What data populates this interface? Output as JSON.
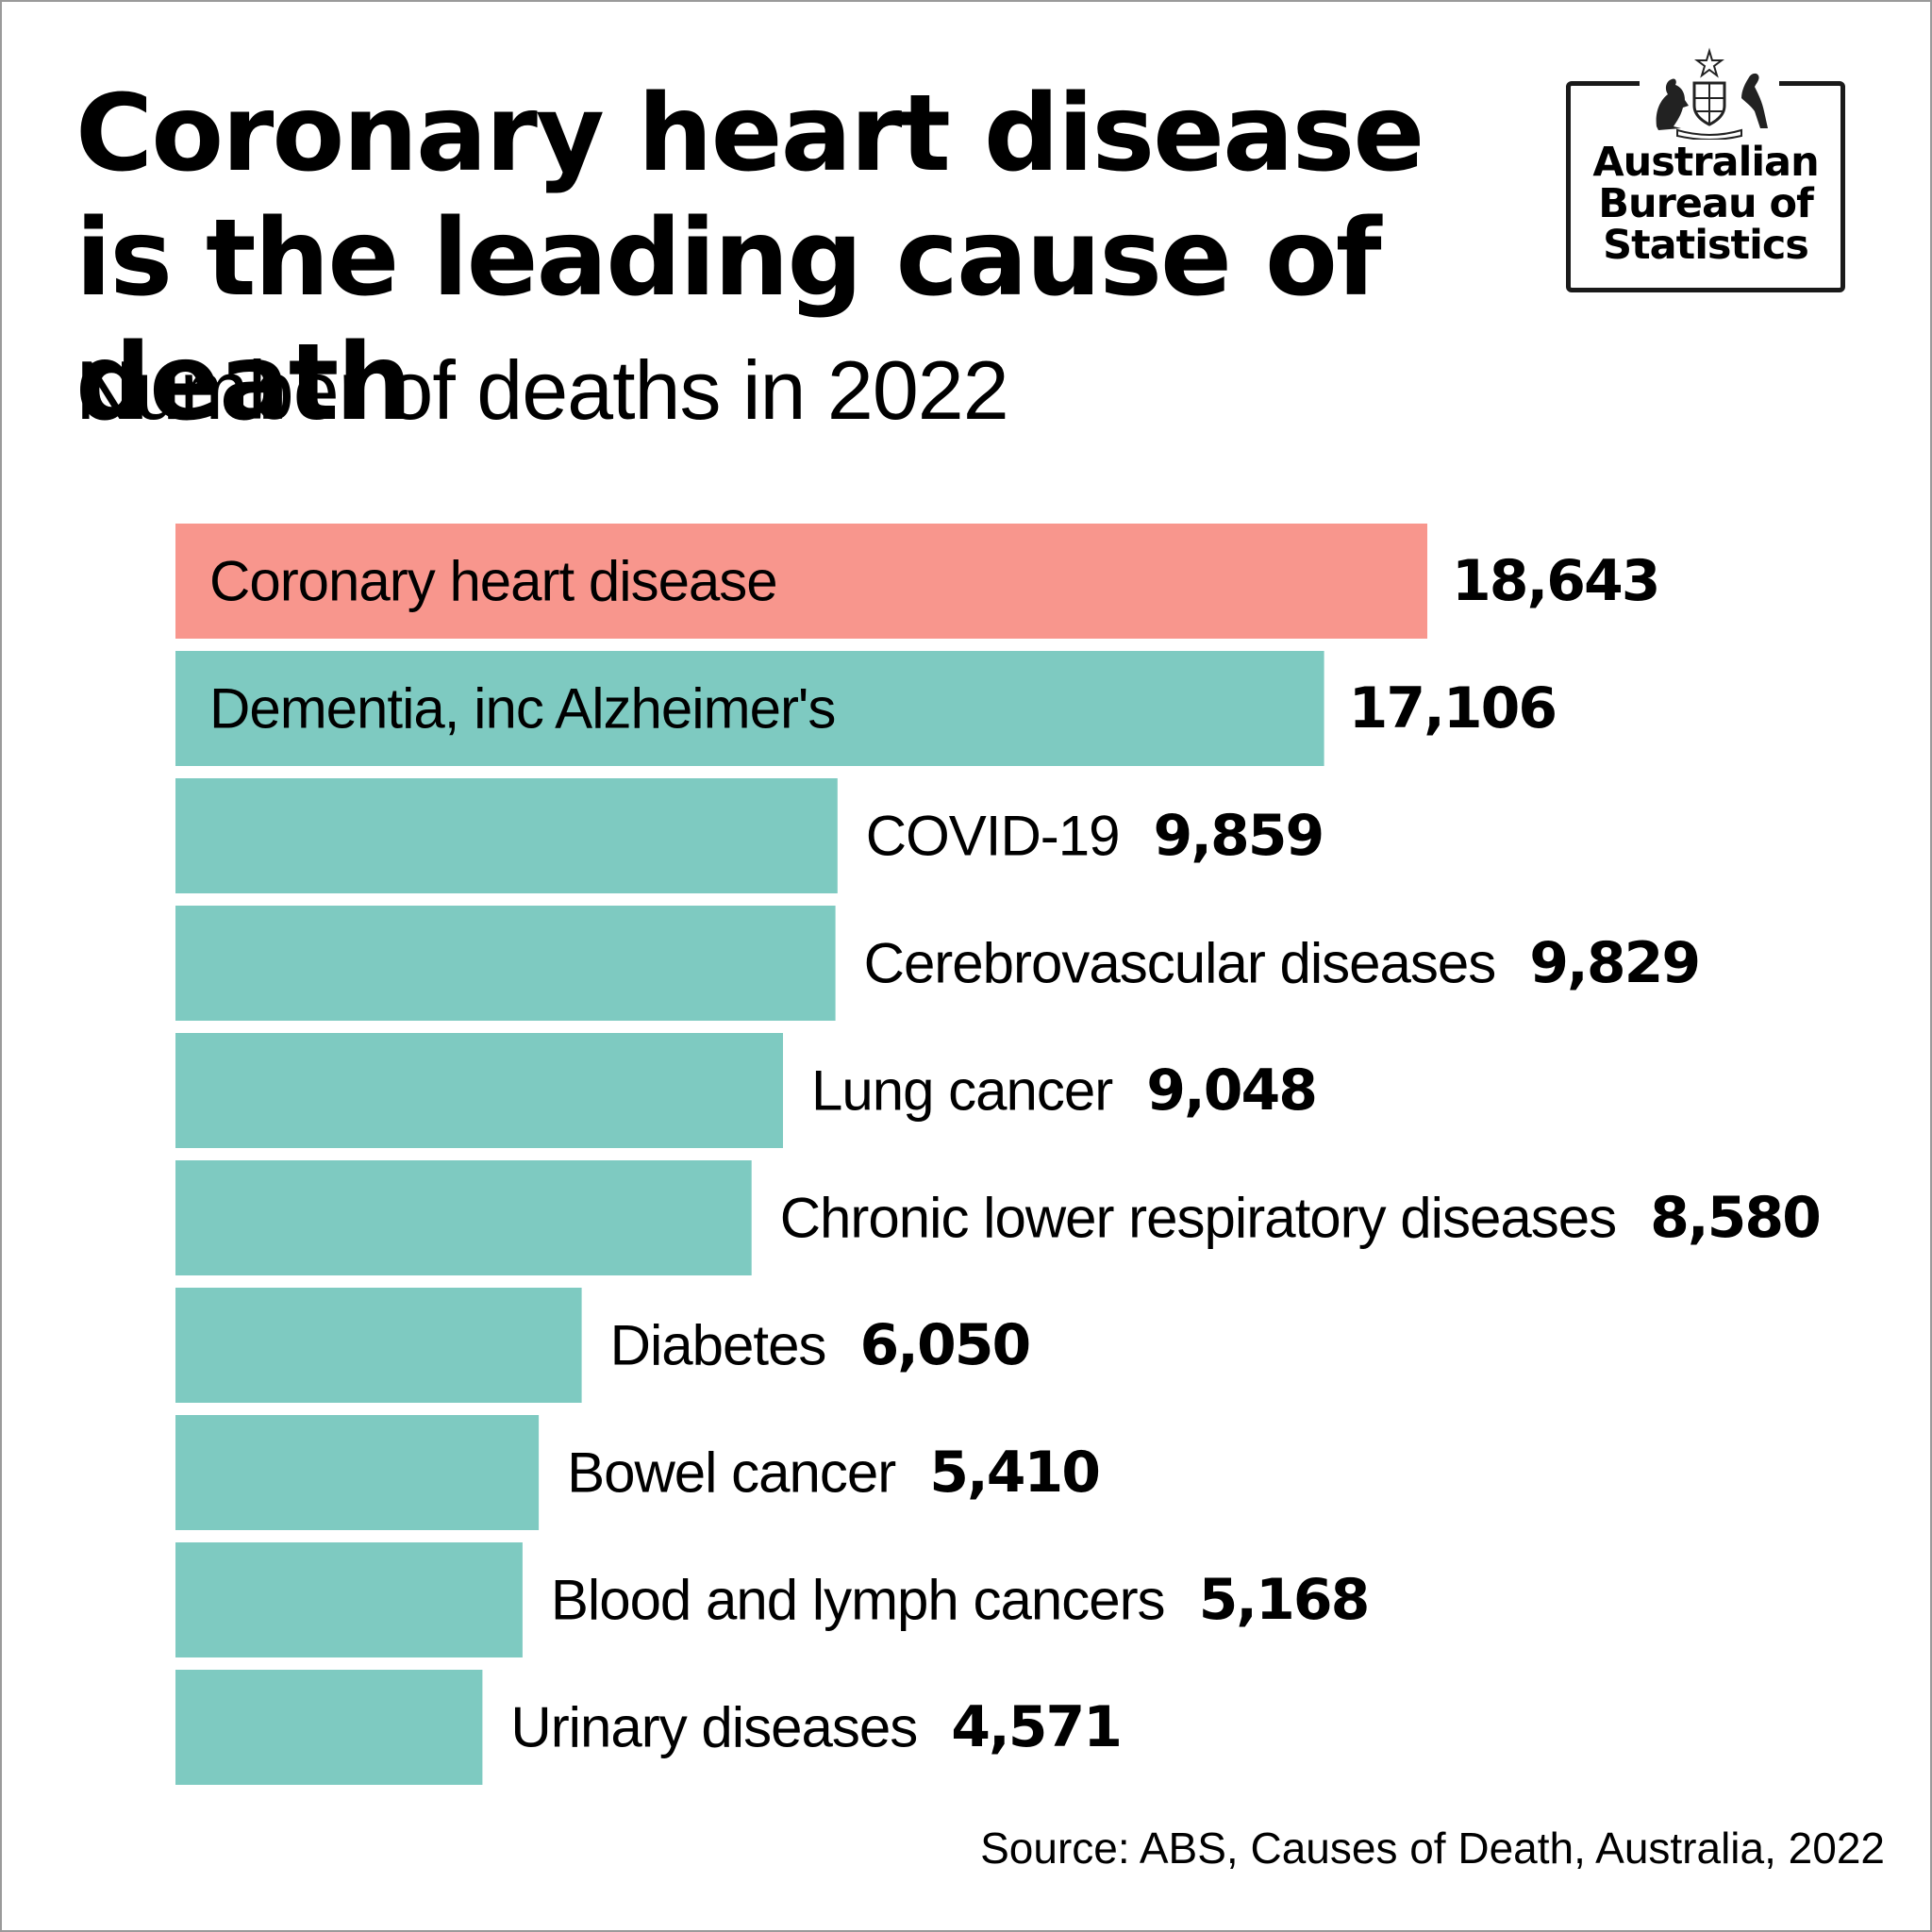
{
  "title": "Coronary heart disease is the leading cause of death",
  "subtitle": "Number of deaths in 2022",
  "logo": {
    "lines": [
      "Australian",
      "Bureau of",
      "Statistics"
    ],
    "crest_text": "AUSTRALIA"
  },
  "source": "Source: ABS, Causes of Death, Australia, 2022",
  "colors": {
    "highlight": "#f8968d",
    "bar": "#7ecac1",
    "text": "#000000"
  },
  "chart_data": {
    "type": "bar",
    "orientation": "horizontal",
    "title": "Coronary heart disease is the leading cause of death",
    "subtitle": "Number of deaths in 2022",
    "xlim": [
      0,
      18643
    ],
    "grid": false,
    "legend": "none",
    "categories": [
      "Coronary heart disease",
      "Dementia, inc Alzheimer's",
      "COVID-19",
      "Cerebrovascular diseases",
      "Lung cancer",
      "Chronic lower respiratory diseases",
      "Diabetes",
      "Bowel cancer",
      "Blood and lymph cancers",
      "Urinary diseases"
    ],
    "values": [
      18643,
      17106,
      9859,
      9829,
      9048,
      8580,
      6050,
      5410,
      5168,
      4571
    ],
    "value_labels": [
      "18,643",
      "17,106",
      "9,859",
      "9,829",
      "9,048",
      "8,580",
      "6,050",
      "5,410",
      "5,168",
      "4,571"
    ],
    "highlighted": [
      "Coronary heart disease"
    ],
    "label_inside_bar": [
      "Coronary heart disease",
      "Dementia, inc Alzheimer's"
    ]
  }
}
